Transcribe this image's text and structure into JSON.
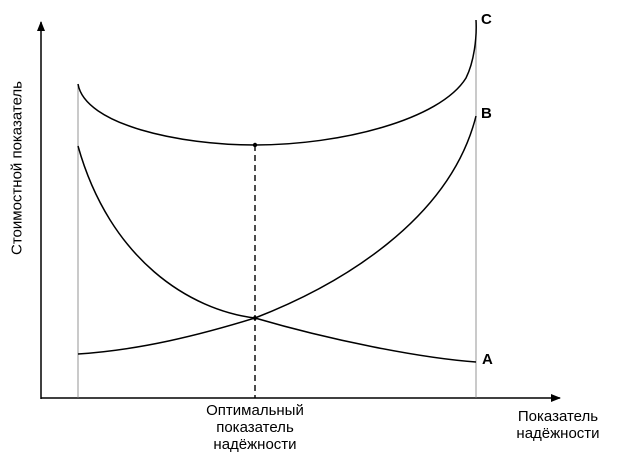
{
  "diagram": {
    "y_axis_label": "Стоимостной показатель",
    "x_axis_label": [
      "Показатель",
      "надёжности"
    ],
    "optimum_label": [
      "Оптимальный",
      "показатель",
      "надёжности"
    ],
    "curves": [
      {
        "id": "A",
        "label": "A"
      },
      {
        "id": "B",
        "label": "B"
      },
      {
        "id": "C",
        "label": "C"
      }
    ],
    "colors": {
      "line": "#000000",
      "guide": "#7a7a7a",
      "background": "#ffffff"
    }
  }
}
